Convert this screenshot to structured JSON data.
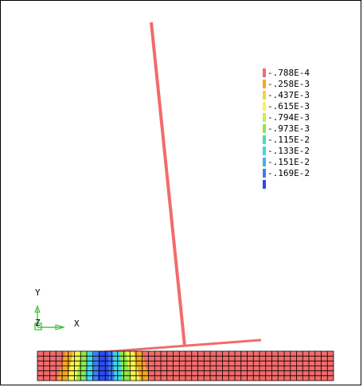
{
  "legend": {
    "entries": [
      {
        "label": "-.788E-4",
        "color": "#f36b6b"
      },
      {
        "label": "-.258E-3",
        "color": "#f5a623"
      },
      {
        "label": "-.437E-3",
        "color": "#f7d23a"
      },
      {
        "label": "-.615E-3",
        "color": "#f5f54a"
      },
      {
        "label": "-.794E-3",
        "color": "#c9f04a"
      },
      {
        "label": "-.973E-3",
        "color": "#8ee84a"
      },
      {
        "label": "-.115E-2",
        "color": "#45e0b0"
      },
      {
        "label": "-.133E-2",
        "color": "#3fd8e8"
      },
      {
        "label": "-.151E-2",
        "color": "#3fb0f0"
      },
      {
        "label": "-.169E-2",
        "color": "#3f7cf0"
      },
      {
        "label": "",
        "color": "#2a4cf0"
      }
    ]
  },
  "axes": {
    "x_label": "X",
    "y_label": "Y",
    "z_label": "Z",
    "axis_color": "#22c022"
  },
  "model": {
    "member_color": "#f36b6b",
    "mesh_base_color": "#f36b6b",
    "mesh_line_color": "#000000",
    "contour_bands": [
      {
        "color": "#f5a623"
      },
      {
        "color": "#f5f54a"
      },
      {
        "color": "#8ee84a"
      },
      {
        "color": "#3fd8e8"
      },
      {
        "color": "#3f7cf0"
      },
      {
        "color": "#2a4cf0"
      }
    ]
  }
}
